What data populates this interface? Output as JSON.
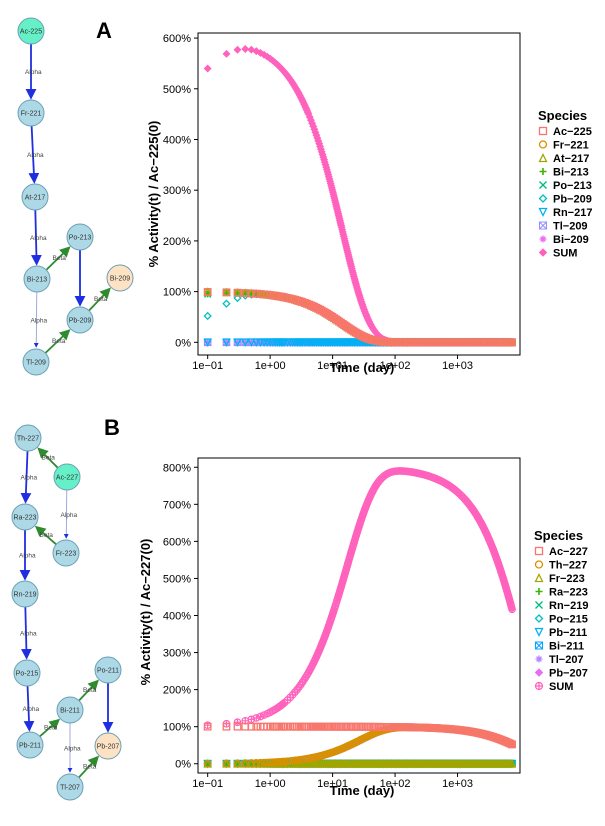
{
  "panels": [
    {
      "label": "A",
      "diagram": {
        "nodes": [
          {
            "id": "Ac-225",
            "color": "#66f0c8"
          },
          {
            "id": "Fr-221",
            "color": "#add8e6"
          },
          {
            "id": "At-217",
            "color": "#add8e6"
          },
          {
            "id": "Bi-213",
            "color": "#add8e6"
          },
          {
            "id": "Po-213",
            "color": "#add8e6"
          },
          {
            "id": "Pb-209",
            "color": "#add8e6"
          },
          {
            "id": "Bi-209",
            "color": "#fde3c4"
          },
          {
            "id": "Tl-209",
            "color": "#add8e6"
          }
        ],
        "edges": [
          {
            "from": "Ac-225",
            "to": "Fr-221",
            "label": "Alpha"
          },
          {
            "from": "Fr-221",
            "to": "At-217",
            "label": "Alpha"
          },
          {
            "from": "At-217",
            "to": "Bi-213",
            "label": "Alpha"
          },
          {
            "from": "Bi-213",
            "to": "Po-213",
            "label": "Beta"
          },
          {
            "from": "Bi-213",
            "to": "Tl-209",
            "label": "Alpha"
          },
          {
            "from": "Po-213",
            "to": "Pb-209",
            "label": ""
          },
          {
            "from": "Tl-209",
            "to": "Pb-209",
            "label": "Beta"
          },
          {
            "from": "Pb-209",
            "to": "Bi-209",
            "label": "Beta"
          }
        ]
      },
      "chart_data": {
        "type": "scatter",
        "xlabel": "Time (day)",
        "ylabel": "% Activity(t) / Ac−225(0)",
        "x_scale": "log",
        "xlim": [
          0.07,
          10000
        ],
        "ylim": [
          -0.25,
          6.1
        ],
        "x_ticks": [
          0.1,
          1,
          10,
          100,
          1000
        ],
        "x_tick_labels": [
          "1e−01",
          "1e+00",
          "1e+01",
          "1e+02",
          "1e+03"
        ],
        "y_ticks": [
          0,
          1,
          2,
          3,
          4,
          5,
          6
        ],
        "y_tick_labels": [
          "0%",
          "100%",
          "200%",
          "300%",
          "400%",
          "500%",
          "600%"
        ],
        "legend_title": "Species",
        "legend_position": "right",
        "series": [
          {
            "name": "Ac−225",
            "color": "#f8766d",
            "marker": "square",
            "kind": "decay",
            "half_life": 9.92
          },
          {
            "name": "Fr−221",
            "color": "#d89000",
            "marker": "circle",
            "kind": "daughter",
            "half_life": 9.92,
            "rise": 0.00338
          },
          {
            "name": "At−217",
            "color": "#a3a500",
            "marker": "triangle",
            "kind": "daughter",
            "half_life": 9.92,
            "rise": 0.00338
          },
          {
            "name": "Bi−213",
            "color": "#39b600",
            "marker": "plus",
            "kind": "daughter",
            "half_life": 9.92,
            "rise": 0.0317
          },
          {
            "name": "Po−213",
            "color": "#00bf7d",
            "marker": "cross",
            "kind": "daughter",
            "half_life": 9.92,
            "rise": 0.0317
          },
          {
            "name": "Pb−209",
            "color": "#00bfc4",
            "marker": "diamond",
            "kind": "daughter",
            "half_life": 9.92,
            "rise": 0.135
          },
          {
            "name": "Rn−217",
            "color": "#00b0f6",
            "marker": "triangle-down",
            "kind": "zero"
          },
          {
            "name": "Tl−209",
            "color": "#9590ff",
            "marker": "square-x",
            "kind": "zero"
          },
          {
            "name": "Bi−209",
            "color": "#e76bf3",
            "marker": "asterisk",
            "kind": "zero"
          },
          {
            "name": "SUM",
            "color": "#ff62bc",
            "marker": "diamond-filled",
            "kind": "sumA",
            "half_life": 9.92
          }
        ],
        "x_points": {
          "start": 0.1,
          "step": 0.1,
          "end": 7500
        }
      }
    },
    {
      "label": "B",
      "diagram": {
        "nodes": [
          {
            "id": "Th-227",
            "color": "#add8e6"
          },
          {
            "id": "Ac-227",
            "color": "#66f0c8"
          },
          {
            "id": "Ra-223",
            "color": "#add8e6"
          },
          {
            "id": "Fr-223",
            "color": "#add8e6"
          },
          {
            "id": "Rn-219",
            "color": "#add8e6"
          },
          {
            "id": "Po-215",
            "color": "#add8e6"
          },
          {
            "id": "Po-211",
            "color": "#add8e6"
          },
          {
            "id": "Bi-211",
            "color": "#add8e6"
          },
          {
            "id": "Pb-211",
            "color": "#add8e6"
          },
          {
            "id": "Pb-207",
            "color": "#fde3c4"
          },
          {
            "id": "Tl-207",
            "color": "#add8e6"
          }
        ],
        "edges": [
          {
            "from": "Ac-227",
            "to": "Th-227",
            "label": "Beta"
          },
          {
            "from": "Th-227",
            "to": "Ra-223",
            "label": "Alpha"
          },
          {
            "from": "Ac-227",
            "to": "Fr-223",
            "label": "Alpha"
          },
          {
            "from": "Fr-223",
            "to": "Ra-223",
            "label": "Beta"
          },
          {
            "from": "Ra-223",
            "to": "Rn-219",
            "label": "Alpha"
          },
          {
            "from": "Rn-219",
            "to": "Po-215",
            "label": "Alpha"
          },
          {
            "from": "Po-215",
            "to": "Pb-211",
            "label": "Alpha"
          },
          {
            "from": "Pb-211",
            "to": "Bi-211",
            "label": "Beta"
          },
          {
            "from": "Bi-211",
            "to": "Po-211",
            "label": "Beta"
          },
          {
            "from": "Bi-211",
            "to": "Tl-207",
            "label": "Alpha"
          },
          {
            "from": "Po-211",
            "to": "Pb-207",
            "label": ""
          },
          {
            "from": "Tl-207",
            "to": "Pb-207",
            "label": "Beta"
          }
        ]
      },
      "chart_data": {
        "type": "scatter",
        "xlabel": "Time (day)",
        "ylabel": "% Activity(t) / Ac−227(0)",
        "x_scale": "log",
        "xlim": [
          0.07,
          10000
        ],
        "ylim": [
          -0.25,
          8.25
        ],
        "x_ticks": [
          0.1,
          1,
          10,
          100,
          1000
        ],
        "x_tick_labels": [
          "1e−01",
          "1e+00",
          "1e+01",
          "1e+02",
          "1e+03"
        ],
        "y_ticks": [
          0,
          1,
          2,
          3,
          4,
          5,
          6,
          7,
          8
        ],
        "y_tick_labels": [
          "0%",
          "100%",
          "200%",
          "300%",
          "400%",
          "500%",
          "600%",
          "700%",
          "800%"
        ],
        "legend_title": "Species",
        "legend_position": "right",
        "series": [
          {
            "name": "Ac−227",
            "color": "#f8766d",
            "marker": "square",
            "kind": "acB"
          },
          {
            "name": "Th−227",
            "color": "#d89000",
            "marker": "circle",
            "kind": "ingrowB",
            "rate": 0.037
          },
          {
            "name": "Fr−223",
            "color": "#a3a500",
            "marker": "triangle",
            "kind": "zero"
          },
          {
            "name": "Ra−223",
            "color": "#39b600",
            "marker": "plus",
            "kind": "zero"
          },
          {
            "name": "Rn−219",
            "color": "#00bf7d",
            "marker": "cross",
            "kind": "zero"
          },
          {
            "name": "Po−215",
            "color": "#00bfc4",
            "marker": "diamond",
            "kind": "zero"
          },
          {
            "name": "Pb−211",
            "color": "#00b0f6",
            "marker": "triangle-down",
            "kind": "zero"
          },
          {
            "name": "Bi−211",
            "color": "#06a4ff",
            "marker": "square-x",
            "kind": "zero"
          },
          {
            "name": "Tl−207",
            "color": "#b983ff",
            "marker": "asterisk",
            "kind": "ingrowB",
            "rate": 0.034
          },
          {
            "name": "Pb−207",
            "color": "#e76bf3",
            "marker": "diamond-filled",
            "kind": "zero"
          },
          {
            "name": "SUM",
            "color": "#ff62bc",
            "marker": "circle-plus",
            "kind": "sumB"
          }
        ],
        "x_points": {
          "start": 0.1,
          "step": 0.1,
          "end": 7500
        }
      }
    }
  ]
}
